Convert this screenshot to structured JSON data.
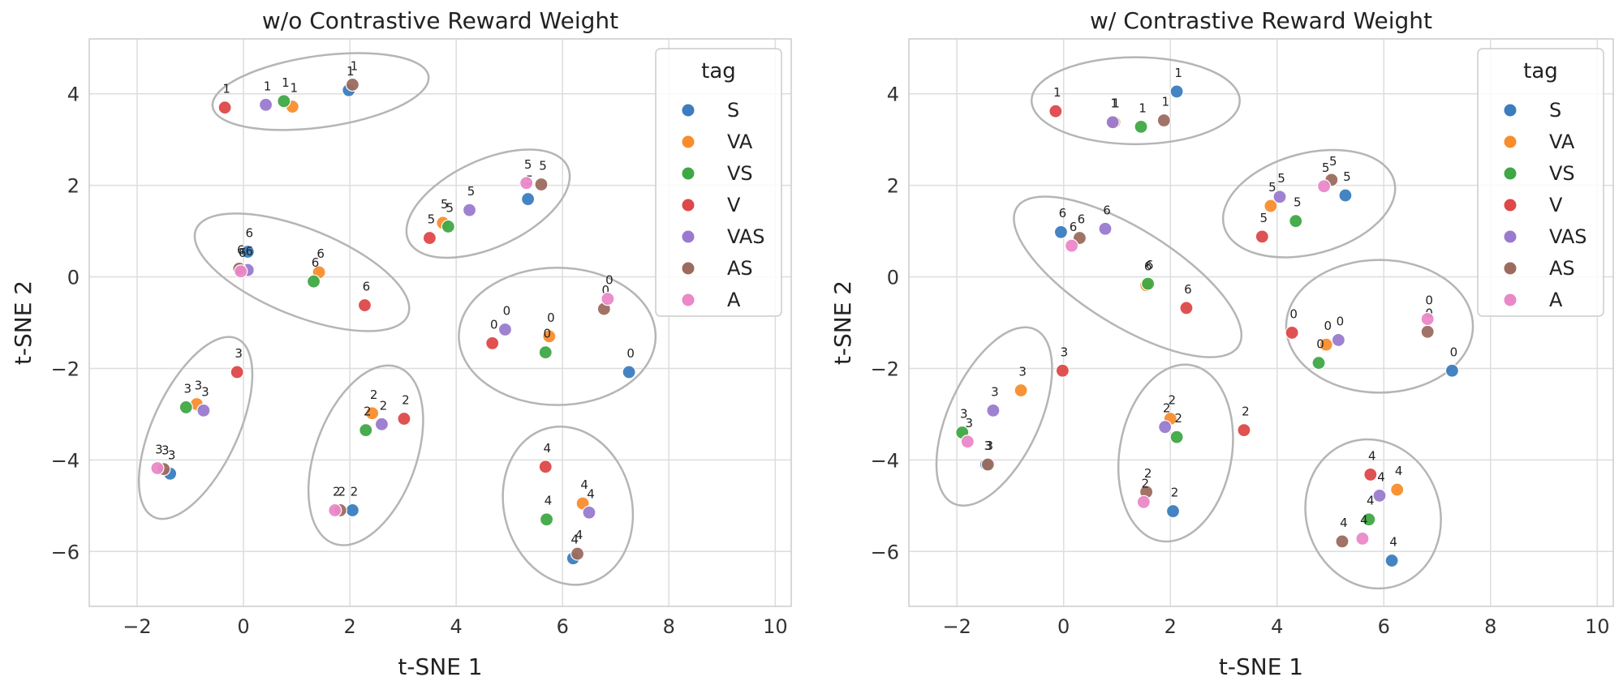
{
  "chart_data": [
    {
      "type": "scatter",
      "title": "w/o Contrastive Reward Weight",
      "xlabel": "t-SNE 1",
      "ylabel": "t-SNE 2",
      "xlim": [
        -2.9,
        10.3
      ],
      "ylim": [
        -7.2,
        5.2
      ],
      "xticks": [
        -2,
        0,
        2,
        4,
        6,
        8,
        10
      ],
      "yticks": [
        -6,
        -4,
        -2,
        0,
        2,
        4
      ],
      "xtick_labels": [
        "−2",
        "0",
        "2",
        "4",
        "6",
        "8",
        "10"
      ],
      "ytick_labels": [
        "−6",
        "−4",
        "−2",
        "0",
        "2",
        "4"
      ],
      "grid": true,
      "legend": {
        "title": "tag",
        "position": "top-right"
      },
      "series": [
        {
          "name": "S",
          "color": "#3b7dbf",
          "points": [
            {
              "x": 1.98,
              "y": 4.08,
              "label": "1"
            },
            {
              "x": 5.35,
              "y": 1.7,
              "label": "5"
            },
            {
              "x": 0.08,
              "y": 0.55,
              "label": "6"
            },
            {
              "x": 7.25,
              "y": -2.08,
              "label": "0"
            },
            {
              "x": -1.38,
              "y": -4.3,
              "label": "3"
            },
            {
              "x": 2.05,
              "y": -5.1,
              "label": "2"
            },
            {
              "x": 6.2,
              "y": -6.15,
              "label": "4"
            }
          ]
        },
        {
          "name": "VA",
          "color": "#f98d2c",
          "points": [
            {
              "x": 0.92,
              "y": 3.72,
              "label": "1"
            },
            {
              "x": 3.75,
              "y": 1.18,
              "label": "5"
            },
            {
              "x": 1.42,
              "y": 0.1,
              "label": "6"
            },
            {
              "x": 5.75,
              "y": -1.3,
              "label": "0"
            },
            {
              "x": -0.88,
              "y": -2.78,
              "label": "3"
            },
            {
              "x": 2.42,
              "y": -2.98,
              "label": "2"
            },
            {
              "x": 6.38,
              "y": -4.95,
              "label": "4"
            }
          ]
        },
        {
          "name": "VS",
          "color": "#3fa845",
          "points": [
            {
              "x": 0.76,
              "y": 3.84,
              "label": "1"
            },
            {
              "x": 3.85,
              "y": 1.1,
              "label": "5"
            },
            {
              "x": 1.32,
              "y": -0.1,
              "label": "6"
            },
            {
              "x": 5.68,
              "y": -1.65,
              "label": "0"
            },
            {
              "x": -1.08,
              "y": -2.85,
              "label": "3"
            },
            {
              "x": 2.3,
              "y": -3.35,
              "label": "2"
            },
            {
              "x": 5.7,
              "y": -5.3,
              "label": "4"
            }
          ]
        },
        {
          "name": "V",
          "color": "#de4848",
          "points": [
            {
              "x": -0.35,
              "y": 3.7,
              "label": "1"
            },
            {
              "x": 3.5,
              "y": 0.85,
              "label": "5"
            },
            {
              "x": 2.28,
              "y": -0.62,
              "label": "6"
            },
            {
              "x": 4.68,
              "y": -1.45,
              "label": "0"
            },
            {
              "x": -0.12,
              "y": -2.08,
              "label": "3"
            },
            {
              "x": 3.02,
              "y": -3.1,
              "label": "2"
            },
            {
              "x": 5.68,
              "y": -4.15,
              "label": "4"
            }
          ]
        },
        {
          "name": "VAS",
          "color": "#9a7ad0",
          "points": [
            {
              "x": 0.42,
              "y": 3.76,
              "label": "1"
            },
            {
              "x": 4.25,
              "y": 1.46,
              "label": "5"
            },
            {
              "x": 0.08,
              "y": 0.15,
              "label": "6"
            },
            {
              "x": 4.92,
              "y": -1.15,
              "label": "0"
            },
            {
              "x": -0.75,
              "y": -2.92,
              "label": "3"
            },
            {
              "x": 2.6,
              "y": -3.22,
              "label": "2"
            },
            {
              "x": 6.5,
              "y": -5.15,
              "label": "4"
            }
          ]
        },
        {
          "name": "AS",
          "color": "#9c6b5e",
          "points": [
            {
              "x": 2.05,
              "y": 4.2,
              "label": "1"
            },
            {
              "x": 5.6,
              "y": 2.02,
              "label": "5"
            },
            {
              "x": -0.08,
              "y": 0.18,
              "label": "6"
            },
            {
              "x": 6.78,
              "y": -0.7,
              "label": "0"
            },
            {
              "x": -1.5,
              "y": -4.2,
              "label": "3"
            },
            {
              "x": 1.82,
              "y": -5.1,
              "label": "2"
            },
            {
              "x": 6.28,
              "y": -6.05,
              "label": "4"
            }
          ]
        },
        {
          "name": "A",
          "color": "#ea88c8",
          "points": [
            {
              "x": 5.32,
              "y": 2.05,
              "label": "5"
            },
            {
              "x": -0.05,
              "y": 0.12,
              "label": "6"
            },
            {
              "x": 6.85,
              "y": -0.48,
              "label": "0"
            },
            {
              "x": -1.62,
              "y": -4.18,
              "label": "3"
            },
            {
              "x": 1.72,
              "y": -5.1,
              "label": "2"
            }
          ]
        }
      ],
      "cluster_ellipses": [
        {
          "cx": 1.45,
          "cy": 4.05,
          "rx": 2.05,
          "ry": 0.78,
          "angle": 8
        },
        {
          "cx": 4.6,
          "cy": 1.6,
          "rx": 1.65,
          "ry": 0.95,
          "angle": 25
        },
        {
          "cx": 1.1,
          "cy": 0.1,
          "rx": 2.15,
          "ry": 0.95,
          "angle": -22
        },
        {
          "cx": 5.9,
          "cy": -1.3,
          "rx": 1.85,
          "ry": 1.5,
          "angle": 0
        },
        {
          "cx": -0.9,
          "cy": -3.3,
          "rx": 0.8,
          "ry": 2.15,
          "angle": -25
        },
        {
          "cx": 2.3,
          "cy": -3.9,
          "rx": 0.95,
          "ry": 2.05,
          "angle": -20
        },
        {
          "cx": 6.1,
          "cy": -5.0,
          "rx": 1.2,
          "ry": 1.75,
          "angle": 15
        }
      ]
    },
    {
      "type": "scatter",
      "title": "w/ Contrastive Reward Weight",
      "xlabel": "t-SNE 1",
      "ylabel": "t-SNE 2",
      "xlim": [
        -2.9,
        10.3
      ],
      "ylim": [
        -7.2,
        5.2
      ],
      "xticks": [
        -2,
        0,
        2,
        4,
        6,
        8,
        10
      ],
      "yticks": [
        -6,
        -4,
        -2,
        0,
        2,
        4
      ],
      "xtick_labels": [
        "−2",
        "0",
        "2",
        "4",
        "6",
        "8",
        "10"
      ],
      "ytick_labels": [
        "−6",
        "−4",
        "−2",
        "0",
        "2",
        "4"
      ],
      "grid": true,
      "legend": {
        "title": "tag",
        "position": "top-right"
      },
      "series": [
        {
          "name": "S",
          "color": "#3b7dbf",
          "points": [
            {
              "x": 2.12,
              "y": 4.05,
              "label": "1"
            },
            {
              "x": 5.28,
              "y": 1.78,
              "label": "5"
            },
            {
              "x": -0.05,
              "y": 0.98,
              "label": "6"
            },
            {
              "x": 7.28,
              "y": -2.05,
              "label": "0"
            },
            {
              "x": -1.45,
              "y": -4.1,
              "label": "3"
            },
            {
              "x": 2.05,
              "y": -5.12,
              "label": "2"
            },
            {
              "x": 6.15,
              "y": -6.2,
              "label": "4"
            }
          ]
        },
        {
          "name": "VA",
          "color": "#f98d2c",
          "points": [
            {
              "x": 0.95,
              "y": 3.38,
              "label": "1"
            },
            {
              "x": 3.88,
              "y": 1.55,
              "label": "5"
            },
            {
              "x": 1.55,
              "y": -0.18,
              "label": "6"
            },
            {
              "x": 4.92,
              "y": -1.48,
              "label": "0"
            },
            {
              "x": -0.8,
              "y": -2.48,
              "label": "3"
            },
            {
              "x": 2.0,
              "y": -3.1,
              "label": "2"
            },
            {
              "x": 6.25,
              "y": -4.65,
              "label": "4"
            }
          ]
        },
        {
          "name": "VS",
          "color": "#3fa845",
          "points": [
            {
              "x": 1.45,
              "y": 3.28,
              "label": "1"
            },
            {
              "x": 4.35,
              "y": 1.22,
              "label": "5"
            },
            {
              "x": 1.58,
              "y": -0.15,
              "label": "6"
            },
            {
              "x": 4.78,
              "y": -1.88,
              "label": "0"
            },
            {
              "x": -1.9,
              "y": -3.4,
              "label": "3"
            },
            {
              "x": 2.12,
              "y": -3.5,
              "label": "2"
            },
            {
              "x": 5.72,
              "y": -5.3,
              "label": "4"
            }
          ]
        },
        {
          "name": "V",
          "color": "#de4848",
          "points": [
            {
              "x": -0.15,
              "y": 3.62,
              "label": "1"
            },
            {
              "x": 3.72,
              "y": 0.88,
              "label": "5"
            },
            {
              "x": 2.3,
              "y": -0.68,
              "label": "6"
            },
            {
              "x": 4.28,
              "y": -1.22,
              "label": "0"
            },
            {
              "x": -0.02,
              "y": -2.05,
              "label": "3"
            },
            {
              "x": 3.38,
              "y": -3.35,
              "label": "2"
            },
            {
              "x": 5.75,
              "y": -4.32,
              "label": "4"
            }
          ]
        },
        {
          "name": "VAS",
          "color": "#9a7ad0",
          "points": [
            {
              "x": 0.92,
              "y": 3.38,
              "label": "1"
            },
            {
              "x": 4.05,
              "y": 1.75,
              "label": "5"
            },
            {
              "x": 0.78,
              "y": 1.05,
              "label": "6"
            },
            {
              "x": 5.15,
              "y": -1.38,
              "label": "0"
            },
            {
              "x": -1.32,
              "y": -2.92,
              "label": "3"
            },
            {
              "x": 1.9,
              "y": -3.28,
              "label": "2"
            },
            {
              "x": 5.92,
              "y": -4.78,
              "label": "4"
            }
          ]
        },
        {
          "name": "AS",
          "color": "#9c6b5e",
          "points": [
            {
              "x": 1.88,
              "y": 3.42,
              "label": "1"
            },
            {
              "x": 5.02,
              "y": 2.12,
              "label": "5"
            },
            {
              "x": 0.3,
              "y": 0.85,
              "label": "6"
            },
            {
              "x": 6.82,
              "y": -1.2,
              "label": "0"
            },
            {
              "x": -1.42,
              "y": -4.1,
              "label": "3"
            },
            {
              "x": 1.55,
              "y": -4.7,
              "label": "2"
            },
            {
              "x": 5.22,
              "y": -5.78,
              "label": "4"
            }
          ]
        },
        {
          "name": "A",
          "color": "#ea88c8",
          "points": [
            {
              "x": 4.88,
              "y": 1.98,
              "label": "5"
            },
            {
              "x": 0.15,
              "y": 0.68,
              "label": "6"
            },
            {
              "x": 6.82,
              "y": -0.92,
              "label": "0"
            },
            {
              "x": -1.8,
              "y": -3.6,
              "label": "3"
            },
            {
              "x": 1.5,
              "y": -4.92,
              "label": "2"
            },
            {
              "x": 5.6,
              "y": -5.72,
              "label": "4"
            }
          ]
        }
      ],
      "cluster_ellipses": [
        {
          "cx": 1.35,
          "cy": 3.85,
          "rx": 1.95,
          "ry": 0.95,
          "angle": 0
        },
        {
          "cx": 4.6,
          "cy": 1.6,
          "rx": 1.65,
          "ry": 1.1,
          "angle": 15
        },
        {
          "cx": 1.2,
          "cy": 0.0,
          "rx": 2.45,
          "ry": 1.05,
          "angle": -32
        },
        {
          "cx": 5.92,
          "cy": -1.08,
          "rx": 1.75,
          "ry": 1.45,
          "angle": 0
        },
        {
          "cx": -1.3,
          "cy": -3.05,
          "rx": 0.85,
          "ry": 2.1,
          "angle": -25
        },
        {
          "cx": 2.1,
          "cy": -3.85,
          "rx": 1.05,
          "ry": 1.95,
          "angle": -10
        },
        {
          "cx": 5.8,
          "cy": -5.18,
          "rx": 1.25,
          "ry": 1.65,
          "angle": 20
        }
      ]
    }
  ]
}
